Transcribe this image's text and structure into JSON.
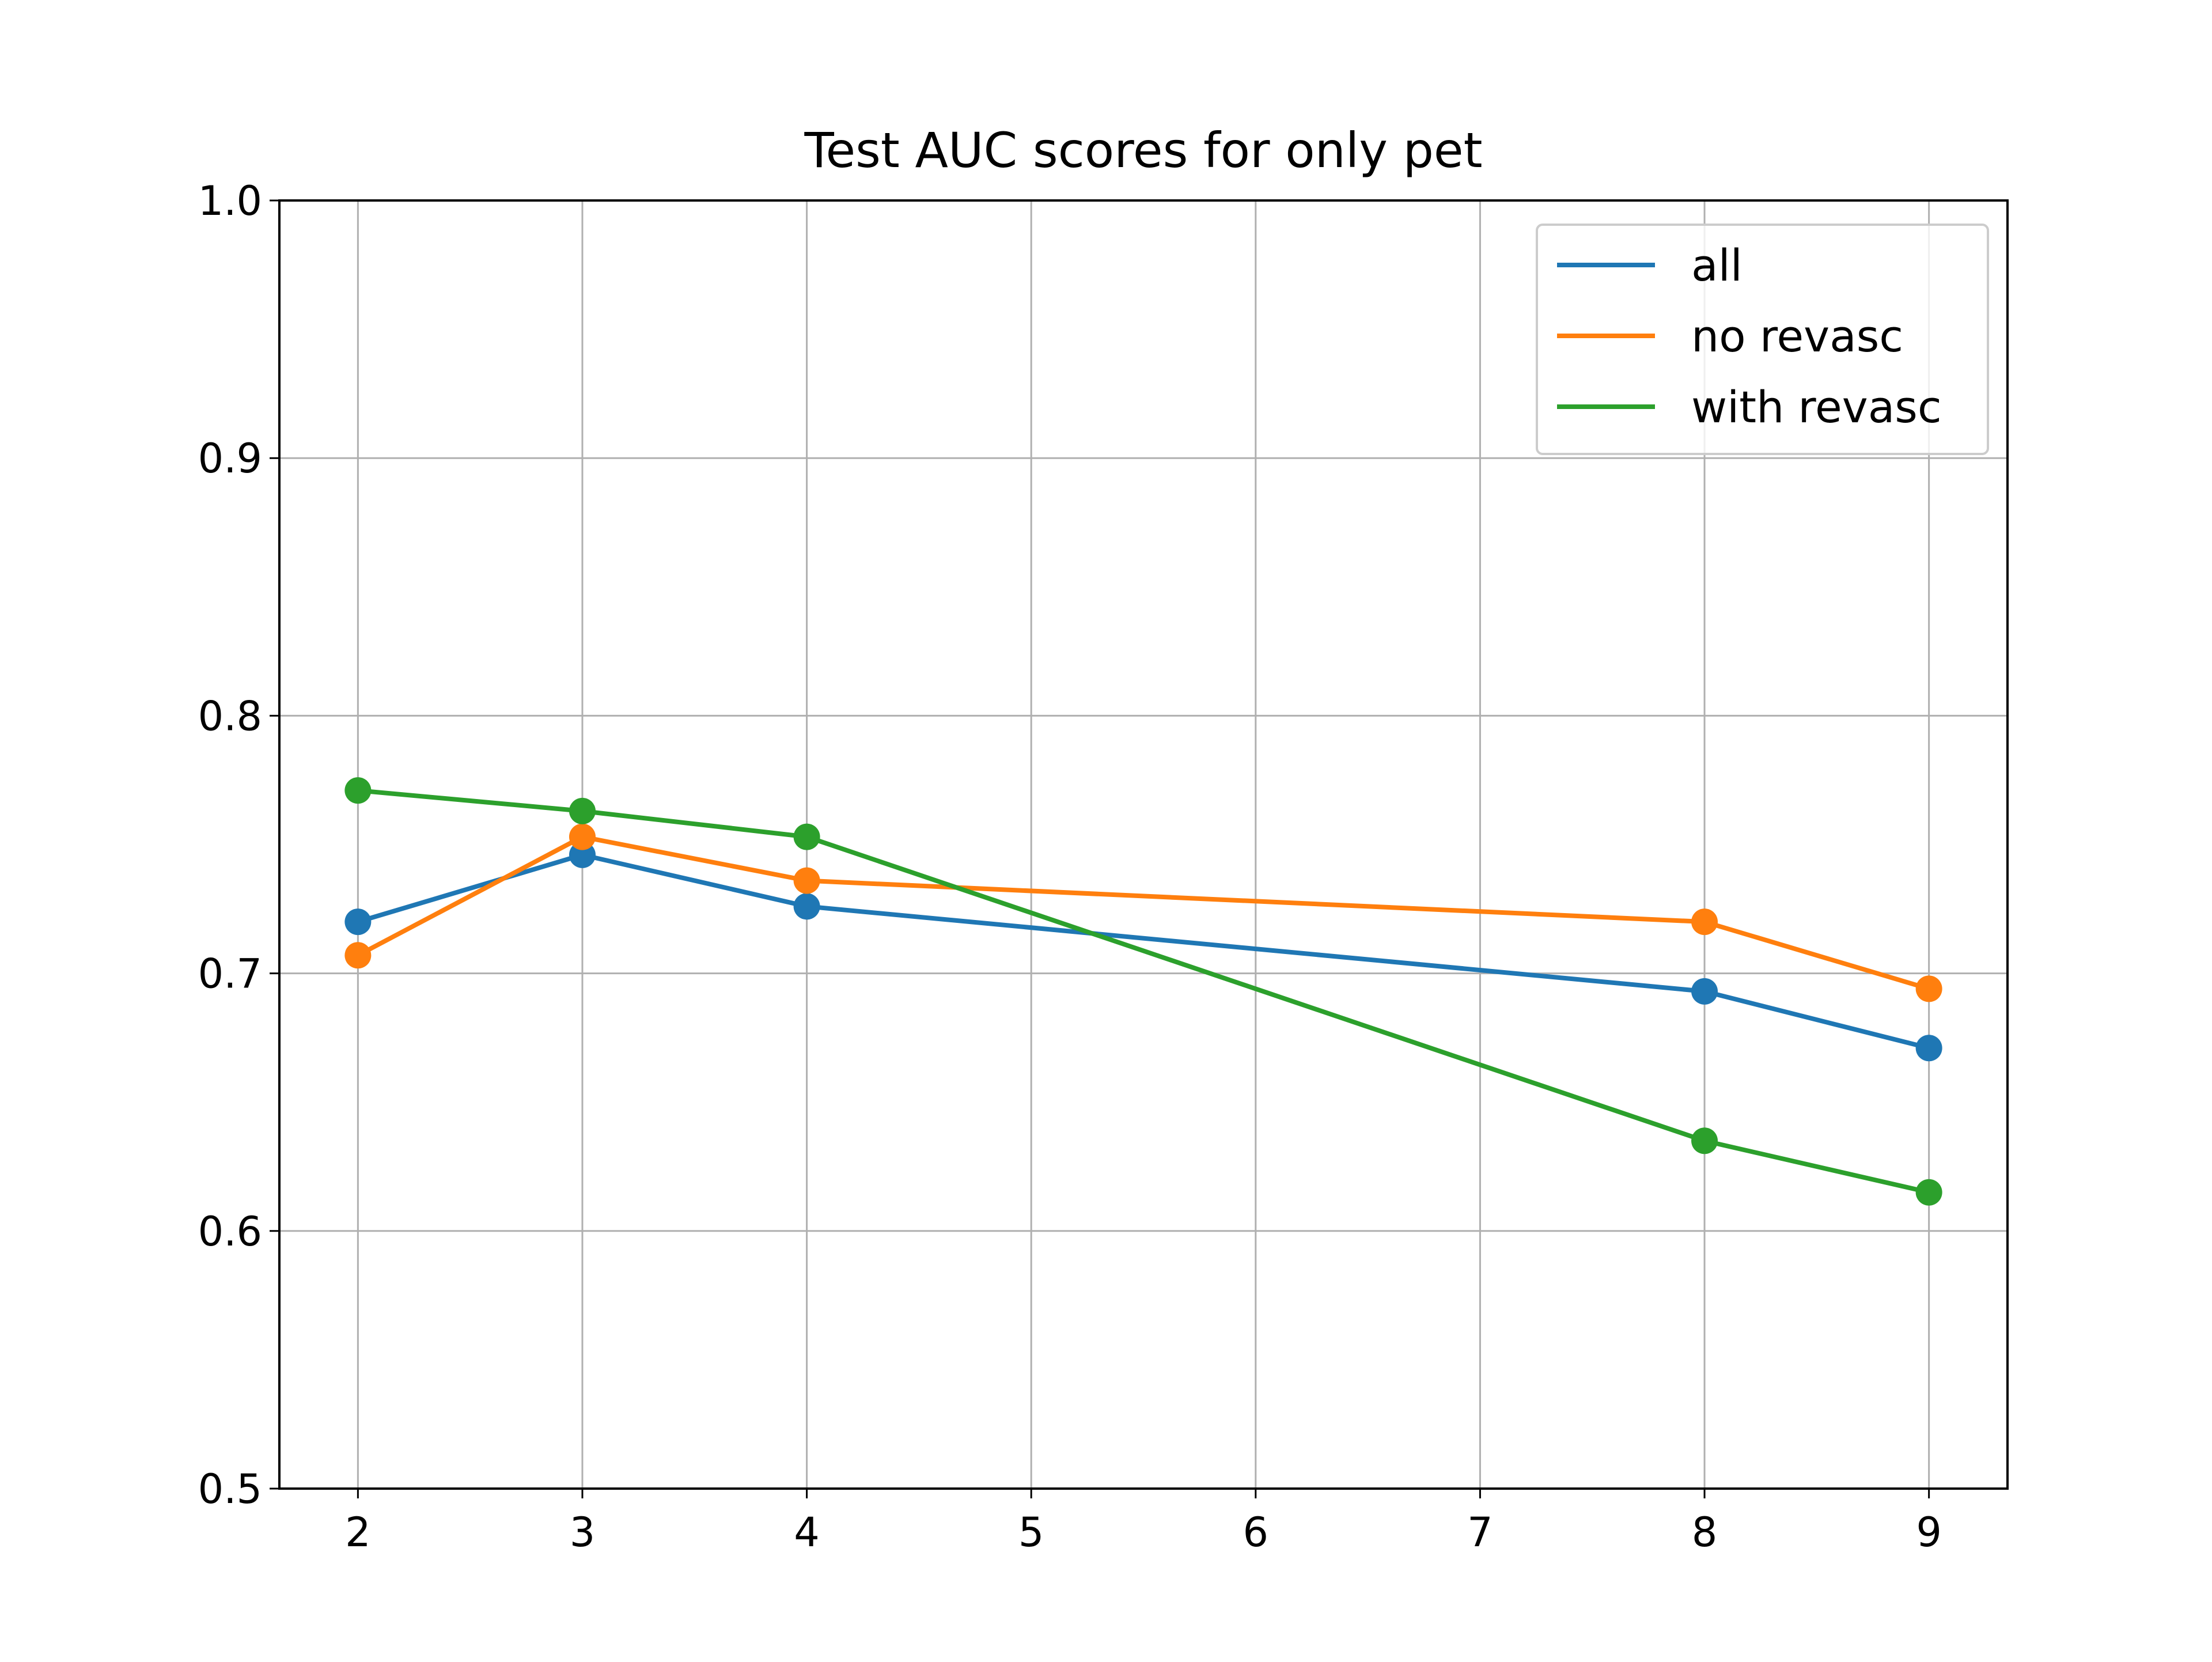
{
  "chart_data": {
    "type": "line",
    "title": "Test AUC scores for only pet",
    "xlabel": "",
    "ylabel": "",
    "x": [
      2,
      3,
      4,
      8,
      9
    ],
    "xticks": [
      2,
      3,
      4,
      5,
      6,
      7,
      8,
      9
    ],
    "xlim": [
      1.65,
      9.35
    ],
    "ylim": [
      0.5,
      1.0
    ],
    "yticks": [
      0.5,
      0.6,
      0.7,
      0.8,
      0.9,
      1.0
    ],
    "ytick_labels": [
      "0.5",
      "0.6",
      "0.7",
      "0.8",
      "0.9",
      "1.0"
    ],
    "grid": true,
    "legend_position": "upper right",
    "series": [
      {
        "name": "all",
        "color": "#1f77b4",
        "values": [
          0.72,
          0.746,
          0.726,
          0.693,
          0.671
        ]
      },
      {
        "name": "no revasc",
        "color": "#ff7f0e",
        "values": [
          0.707,
          0.753,
          0.736,
          0.72,
          0.694
        ]
      },
      {
        "name": "with revasc",
        "color": "#2ca02c",
        "values": [
          0.771,
          0.763,
          0.753,
          0.635,
          0.615
        ]
      }
    ]
  }
}
